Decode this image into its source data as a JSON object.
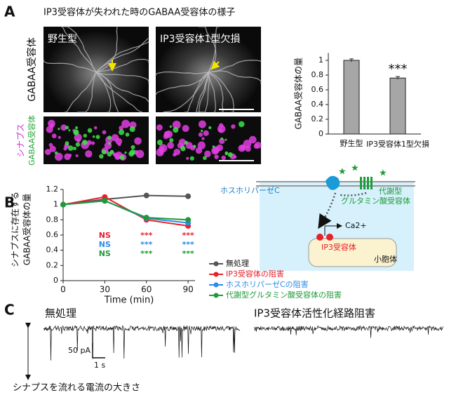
{
  "panel_labels": [
    "A",
    "B",
    "C"
  ],
  "panel_a": {
    "title": "IP3受容体が失われた時のGABAA受容体の様子",
    "image_titles": [
      "野生型",
      "IP3受容体1型欠損"
    ],
    "row_label": "GABAA受容体",
    "synapse_label": "シナプス",
    "synapse_gaba_label": "GABAA受容体"
  },
  "diagram": {
    "plc": "ホスホリパーゼC",
    "receptor_line1": "代謝型",
    "receptor_line2": "グルタミン酸受容体",
    "ca": "Ca2+",
    "ip3r": "IP3受容体",
    "er": "小胞体"
  },
  "panel_c": {
    "left_title": "無処理",
    "right_title": "IP3受容体活性化経路阻害",
    "scale_current": "50 pA",
    "scale_time": "1 s",
    "caption": "シナプスを流れる電流の大きさ"
  },
  "chart_data": [
    {
      "type": "bar",
      "ylabel": "GABAA受容体の量",
      "categories": [
        "野生型",
        "IP3受容体1型欠損"
      ],
      "values": [
        1.0,
        0.76
      ],
      "errors": [
        0.02,
        0.02
      ],
      "significance_labels": [
        null,
        "***"
      ],
      "color": "#a6a6a6",
      "ylim": [
        0,
        1.1
      ],
      "yticks": [
        0,
        0.2,
        0.4,
        0.6,
        0.8,
        1
      ]
    },
    {
      "type": "line",
      "ylabel": [
        "シナプスに存在する",
        "GABAA受容体の量"
      ],
      "xlabel": "Time (min)",
      "x": [
        0,
        30,
        60,
        90
      ],
      "xlim": [
        0,
        95
      ],
      "xticks": [
        0,
        30,
        60,
        90
      ],
      "ylim": [
        0,
        1.2
      ],
      "yticks": [
        0,
        0.2,
        0.4,
        0.6,
        0.8,
        1,
        1.2
      ],
      "series": [
        {
          "name": "無処理",
          "color": "#555555",
          "values": [
            1,
            1.07,
            1.12,
            1.11
          ],
          "errors": [
            null,
            null,
            0.03,
            0.02
          ]
        },
        {
          "name": "IP3受容体の阻害",
          "color": "#e8202a",
          "values": [
            1,
            1.1,
            0.8,
            0.72
          ],
          "significance": [
            null,
            "NS",
            "***",
            "***"
          ]
        },
        {
          "name": "ホスホリパーゼCの阻害",
          "color": "#2a8ce8",
          "values": [
            1,
            1.05,
            0.82,
            0.76
          ],
          "significance": [
            null,
            "NS",
            "***",
            "***"
          ]
        },
        {
          "name": "代謝型グルタミン酸受容体の阻害",
          "color": "#1f9a3a",
          "values": [
            1,
            1.05,
            0.83,
            0.8
          ],
          "significance": [
            null,
            "NS",
            "***",
            "***"
          ]
        }
      ]
    }
  ]
}
